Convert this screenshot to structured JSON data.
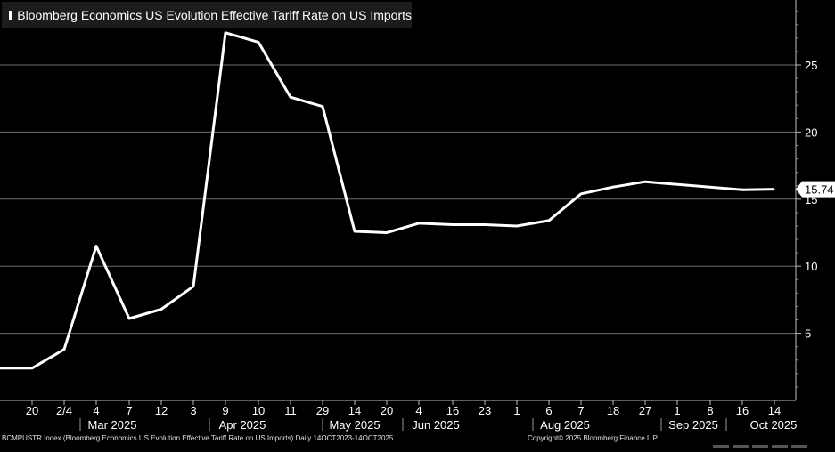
{
  "chart_data": {
    "type": "line",
    "title": "Bloomberg Economics US Evolution Effective Tariff Rate on US Imports",
    "legend": "Bloomberg Economics US Evolution Effective Tariff Rate on US Imports",
    "legend_position": "top-left",
    "series": [
      {
        "name": "Bloomberg Economics US Evolution Effective Tariff Rate on US Imports",
        "color": "#ffffff",
        "values": [
          2.4,
          2.4,
          3.8,
          11.5,
          6.1,
          6.8,
          8.5,
          27.4,
          26.7,
          22.6,
          21.9,
          12.6,
          12.5,
          13.2,
          13.1,
          13.1,
          13.0,
          13.4,
          15.4,
          15.9,
          16.3,
          16.1,
          15.7,
          15.74
        ]
      }
    ],
    "x_ticks": [
      "20",
      "2/4",
      "4",
      "7",
      "12",
      "3",
      "9",
      "10",
      "11",
      "29",
      "14",
      "20",
      "4",
      "16",
      "23",
      "1",
      "6",
      "7",
      "18",
      "27",
      "1",
      "8",
      "16",
      "14"
    ],
    "months": [
      "Mar 2025",
      "Apr 2025",
      "May 2025",
      "Jun 2025",
      "Aug 2025",
      "Sep 2025",
      "Oct 2025"
    ],
    "y_ticks": [
      5,
      10,
      15,
      20,
      25
    ],
    "ylim": [
      0,
      29.8
    ],
    "grid": true,
    "last_value_label": "15.74",
    "xlabel": "",
    "ylabel": ""
  },
  "footer": {
    "source": "BCMPUSTR Index (Bloomberg Economics US Evolution Effective Tariff Rate on US Imports) Daily 14OCT2023-14OCT2025",
    "copyright": "Copyright© 2025 Bloomberg Finance L.P."
  }
}
